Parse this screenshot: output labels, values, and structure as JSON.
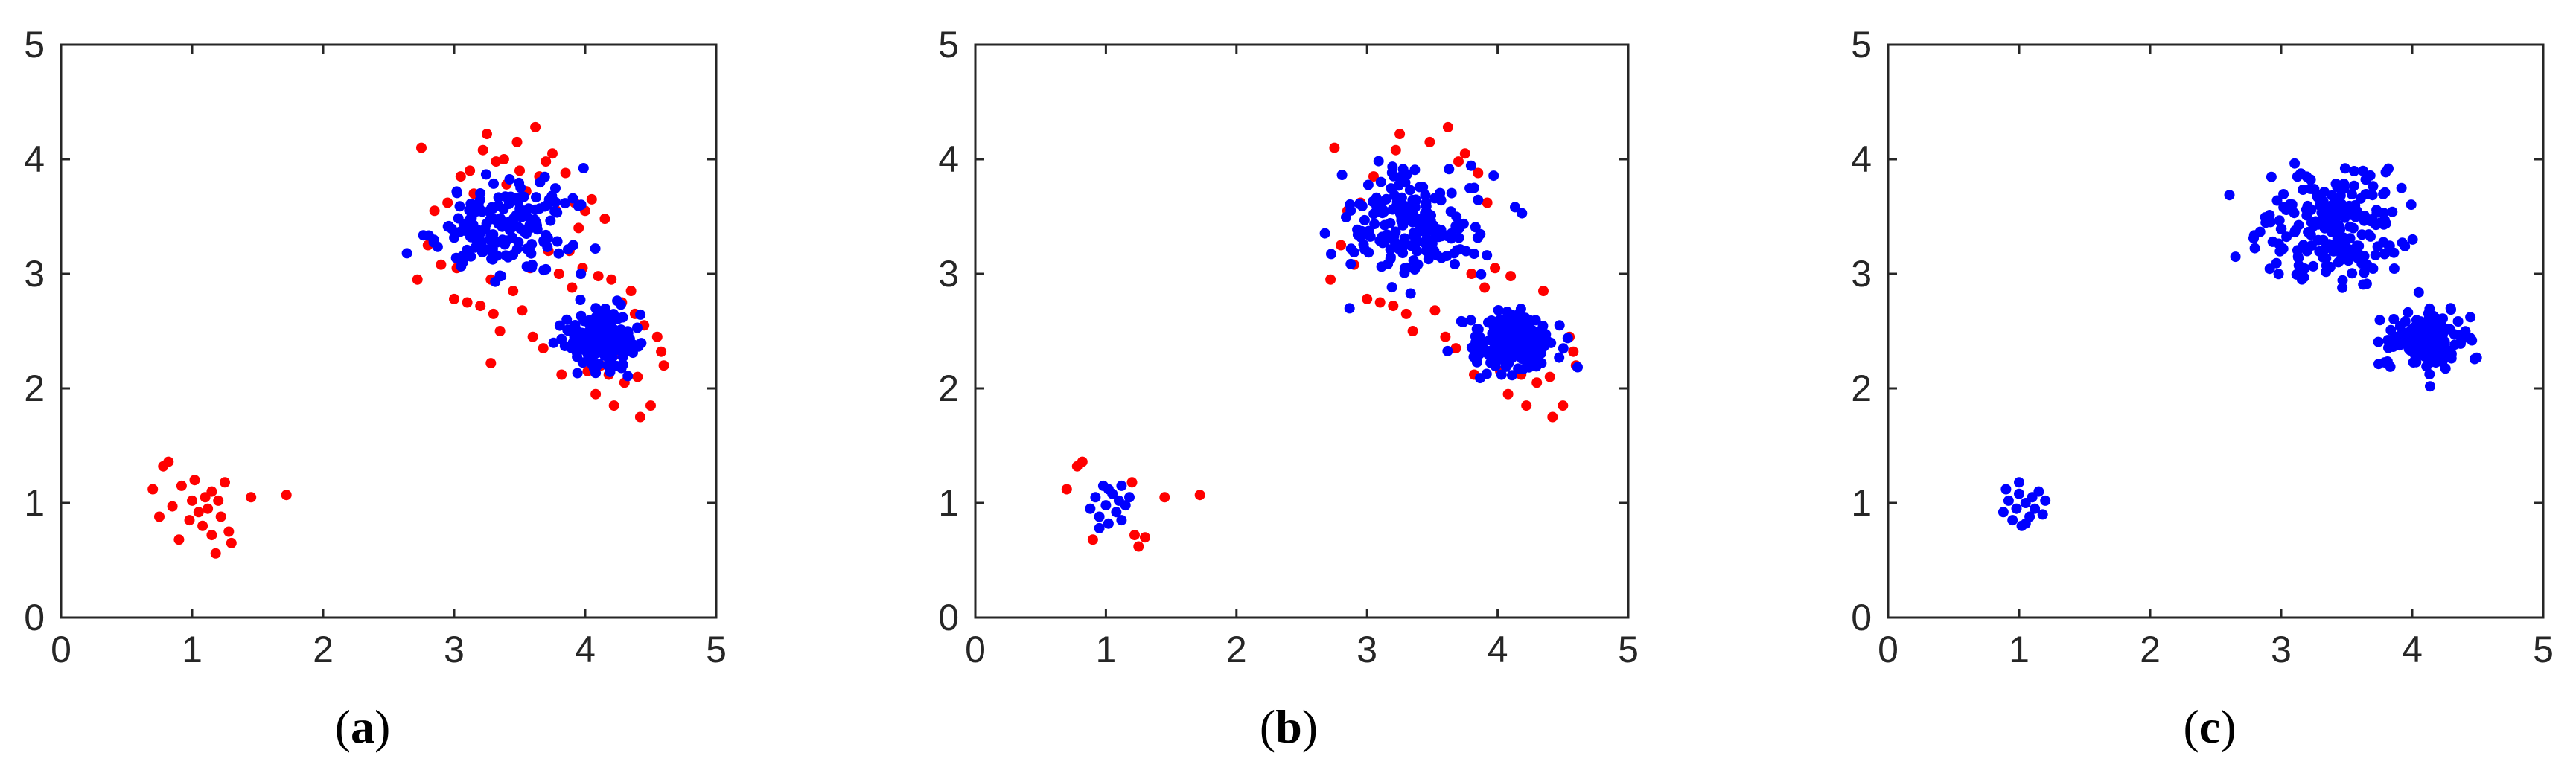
{
  "colors": {
    "red": "#ff0000",
    "blue": "#0000ff"
  },
  "chart_data": [
    {
      "type": "scatter",
      "caption": "(a)",
      "caption_letter": "a",
      "xlim": [
        0,
        5
      ],
      "ylim": [
        0,
        5
      ],
      "xticks": [
        "0",
        "1",
        "2",
        "3",
        "4",
        "5"
      ],
      "yticks": [
        "0",
        "1",
        "2",
        "3",
        "4",
        "5"
      ],
      "grid": false,
      "series": [
        {
          "color": "red",
          "points": [
            [
              0.7,
              1.12
            ],
            [
              0.75,
              0.88
            ],
            [
              0.78,
              1.32
            ],
            [
              0.82,
              1.36
            ],
            [
              0.85,
              0.97
            ],
            [
              0.9,
              0.68
            ],
            [
              0.92,
              1.15
            ],
            [
              0.98,
              0.85
            ],
            [
              1.0,
              1.02
            ],
            [
              1.02,
              1.2
            ],
            [
              1.05,
              0.92
            ],
            [
              1.08,
              0.8
            ],
            [
              1.1,
              1.05
            ],
            [
              1.12,
              0.95
            ],
            [
              1.15,
              1.1
            ],
            [
              1.15,
              0.72
            ],
            [
              1.18,
              0.56
            ],
            [
              1.2,
              1.02
            ],
            [
              1.22,
              0.88
            ],
            [
              1.25,
              1.18
            ],
            [
              1.28,
              0.75
            ],
            [
              1.3,
              0.65
            ],
            [
              1.45,
              1.05
            ],
            [
              1.72,
              1.07
            ],
            [
              2.72,
              2.95
            ],
            [
              2.75,
              4.1
            ],
            [
              2.8,
              3.25
            ],
            [
              2.85,
              3.55
            ],
            [
              2.9,
              3.08
            ],
            [
              2.95,
              3.62
            ],
            [
              3.0,
              2.78
            ],
            [
              3.02,
              3.05
            ],
            [
              3.05,
              3.85
            ],
            [
              3.1,
              2.75
            ],
            [
              3.12,
              3.9
            ],
            [
              3.15,
              3.7
            ],
            [
              3.2,
              2.72
            ],
            [
              3.22,
              4.08
            ],
            [
              3.25,
              4.22
            ],
            [
              3.28,
              2.95
            ],
            [
              3.3,
              2.65
            ],
            [
              3.32,
              3.98
            ],
            [
              3.35,
              2.5
            ],
            [
              3.38,
              4.0
            ],
            [
              3.4,
              3.78
            ],
            [
              3.45,
              2.85
            ],
            [
              3.48,
              4.15
            ],
            [
              3.5,
              3.9
            ],
            [
              3.52,
              2.68
            ],
            [
              3.55,
              3.72
            ],
            [
              3.6,
              2.45
            ],
            [
              3.62,
              4.28
            ],
            [
              3.65,
              3.85
            ],
            [
              3.68,
              2.35
            ],
            [
              3.7,
              3.98
            ],
            [
              3.72,
              3.2
            ],
            [
              3.75,
              4.05
            ],
            [
              3.78,
              3.55
            ],
            [
              3.8,
              3.0
            ],
            [
              3.82,
              2.12
            ],
            [
              3.85,
              3.88
            ],
            [
              3.88,
              3.2
            ],
            [
              3.9,
              2.88
            ],
            [
              3.92,
              3.62
            ],
            [
              3.95,
              3.4
            ],
            [
              3.98,
              3.05
            ],
            [
              4.0,
              3.55
            ],
            [
              4.02,
              2.15
            ],
            [
              4.05,
              3.65
            ],
            [
              4.08,
              1.95
            ],
            [
              4.1,
              2.98
            ],
            [
              4.12,
              2.2
            ],
            [
              4.15,
              3.48
            ],
            [
              4.18,
              2.12
            ],
            [
              4.2,
              2.95
            ],
            [
              4.22,
              1.85
            ],
            [
              4.25,
              2.3
            ],
            [
              4.28,
              2.75
            ],
            [
              4.3,
              2.05
            ],
            [
              4.35,
              2.85
            ],
            [
              4.38,
              2.65
            ],
            [
              4.4,
              2.1
            ],
            [
              4.42,
              1.75
            ],
            [
              4.45,
              2.55
            ],
            [
              4.5,
              1.85
            ],
            [
              4.55,
              2.45
            ],
            [
              4.58,
              2.32
            ],
            [
              4.6,
              2.2
            ],
            [
              3.28,
              2.22
            ],
            [
              3.58,
              3.05
            ]
          ]
        },
        {
          "color": "blue",
          "center": [
            3.38,
            3.42
          ],
          "spread": [
            0.26,
            0.2
          ],
          "count": 170,
          "seed": 11
        },
        {
          "color": "blue",
          "center": [
            4.12,
            2.42
          ],
          "spread": [
            0.14,
            0.12
          ],
          "count": 180,
          "seed": 23
        }
      ]
    },
    {
      "type": "scatter",
      "caption": "(b)",
      "caption_letter": "b",
      "xlim": [
        0,
        5
      ],
      "ylim": [
        0,
        5
      ],
      "xticks": [
        "0",
        "1",
        "2",
        "3",
        "4",
        "5"
      ],
      "yticks": [
        "0",
        "1",
        "2",
        "3",
        "4",
        "5"
      ],
      "grid": false,
      "series": [
        {
          "color": "red",
          "points": [
            [
              0.7,
              1.12
            ],
            [
              0.78,
              1.32
            ],
            [
              0.82,
              1.36
            ],
            [
              0.9,
              0.68
            ],
            [
              1.2,
              1.18
            ],
            [
              1.22,
              0.72
            ],
            [
              1.25,
              0.62
            ],
            [
              1.3,
              0.7
            ],
            [
              1.45,
              1.05
            ],
            [
              1.72,
              1.07
            ],
            [
              2.72,
              2.95
            ],
            [
              2.75,
              4.1
            ],
            [
              2.8,
              3.25
            ],
            [
              2.85,
              3.55
            ],
            [
              2.9,
              3.08
            ],
            [
              2.95,
              3.62
            ],
            [
              3.0,
              2.78
            ],
            [
              3.05,
              3.85
            ],
            [
              3.1,
              2.75
            ],
            [
              3.2,
              2.72
            ],
            [
              3.22,
              4.08
            ],
            [
              3.25,
              4.22
            ],
            [
              3.3,
              2.65
            ],
            [
              3.35,
              2.5
            ],
            [
              3.48,
              4.15
            ],
            [
              3.52,
              2.68
            ],
            [
              3.6,
              2.45
            ],
            [
              3.62,
              4.28
            ],
            [
              3.68,
              2.35
            ],
            [
              3.75,
              4.05
            ],
            [
              3.8,
              3.0
            ],
            [
              3.82,
              2.12
            ],
            [
              3.85,
              3.88
            ],
            [
              3.9,
              2.88
            ],
            [
              3.92,
              3.62
            ],
            [
              3.98,
              3.05
            ],
            [
              4.02,
              2.15
            ],
            [
              4.08,
              1.95
            ],
            [
              4.1,
              2.98
            ],
            [
              4.18,
              2.12
            ],
            [
              4.22,
              1.85
            ],
            [
              4.3,
              2.05
            ],
            [
              4.35,
              2.85
            ],
            [
              4.4,
              2.1
            ],
            [
              4.42,
              1.75
            ],
            [
              4.5,
              1.85
            ],
            [
              4.55,
              2.45
            ],
            [
              4.58,
              2.32
            ],
            [
              4.6,
              2.2
            ],
            [
              3.7,
              3.98
            ]
          ]
        },
        {
          "color": "blue",
          "points": [
            [
              0.88,
              0.95
            ],
            [
              0.92,
              1.05
            ],
            [
              0.95,
              0.88
            ],
            [
              0.98,
              1.15
            ],
            [
              1.0,
              0.98
            ],
            [
              1.02,
              0.82
            ],
            [
              1.05,
              1.08
            ],
            [
              1.08,
              0.92
            ],
            [
              1.1,
              1.02
            ],
            [
              1.12,
              0.85
            ],
            [
              1.15,
              0.98
            ],
            [
              1.18,
              1.05
            ],
            [
              1.02,
              1.12
            ],
            [
              0.95,
              0.78
            ],
            [
              1.12,
              1.15
            ]
          ]
        },
        {
          "color": "blue",
          "center": [
            3.38,
            3.42
          ],
          "spread": [
            0.26,
            0.22
          ],
          "count": 190,
          "seed": 37
        },
        {
          "color": "blue",
          "center": [
            4.12,
            2.42
          ],
          "spread": [
            0.15,
            0.13
          ],
          "count": 200,
          "seed": 41
        }
      ]
    },
    {
      "type": "scatter",
      "caption": "(c)",
      "caption_letter": "c",
      "xlim": [
        0,
        5
      ],
      "ylim": [
        0,
        5
      ],
      "xticks": [
        "0",
        "1",
        "2",
        "3",
        "4",
        "5"
      ],
      "yticks": [
        "0",
        "1",
        "2",
        "3",
        "4",
        "5"
      ],
      "grid": false,
      "series": [
        {
          "color": "blue",
          "points": [
            [
              0.88,
              0.92
            ],
            [
              0.9,
              1.12
            ],
            [
              0.92,
              1.02
            ],
            [
              0.95,
              0.85
            ],
            [
              0.98,
              0.95
            ],
            [
              1.0,
              1.08
            ],
            [
              1.02,
              0.8
            ],
            [
              1.05,
              1.0
            ],
            [
              1.08,
              0.88
            ],
            [
              1.1,
              1.05
            ],
            [
              1.12,
              0.95
            ],
            [
              1.15,
              1.1
            ],
            [
              1.18,
              0.9
            ],
            [
              1.2,
              1.02
            ],
            [
              1.0,
              1.18
            ],
            [
              1.05,
              0.82
            ]
          ]
        },
        {
          "color": "blue",
          "center": [
            3.38,
            3.42
          ],
          "spread": [
            0.27,
            0.24
          ],
          "count": 210,
          "seed": 53
        },
        {
          "color": "blue",
          "center": [
            4.12,
            2.42
          ],
          "spread": [
            0.14,
            0.13
          ],
          "count": 190,
          "seed": 67
        }
      ]
    }
  ]
}
